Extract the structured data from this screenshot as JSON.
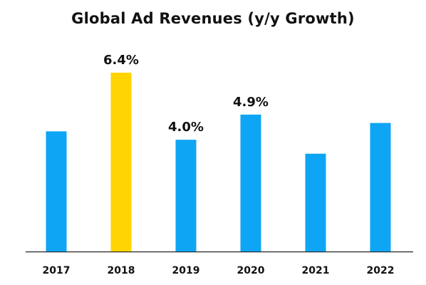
{
  "chart_data": {
    "type": "bar",
    "title": "Global Ad Revenues (y/y Growth)",
    "xlabel": "",
    "ylabel": "",
    "categories": [
      "2017",
      "2018",
      "2019",
      "2020",
      "2021",
      "2022"
    ],
    "values": [
      4.3,
      6.4,
      4.0,
      4.9,
      3.5,
      4.6
    ],
    "data_labels": [
      "",
      "6.4%",
      "4.0%",
      "4.9%",
      "",
      ""
    ],
    "ylim": [
      0,
      6.4
    ],
    "grid": false,
    "legend": "none",
    "colors": {
      "default_bar": "#0EA5F5",
      "highlight_bar": "#FFD400",
      "axis": "#222222"
    },
    "highlight_index": 1
  }
}
